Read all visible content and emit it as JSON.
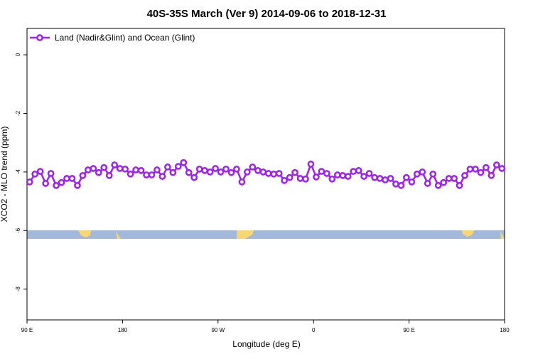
{
  "chart_data": {
    "type": "line",
    "title": "40S-35S March (Ver 9)   2014-09-06 to 2018-12-31",
    "x_label": "Longitude (deg E)",
    "y_label": "XCO2 - MLO trend (ppm)",
    "xlim": [
      90,
      540
    ],
    "xticks": [
      {
        "value": 90,
        "label": "90 E"
      },
      {
        "value": 180,
        "label": "180"
      },
      {
        "value": 270,
        "label": "90 W"
      },
      {
        "value": 360,
        "label": "0"
      },
      {
        "value": 450,
        "label": "90 E"
      },
      {
        "value": 540,
        "label": "180"
      }
    ],
    "ylim": [
      -9.05,
      0.9
    ],
    "yticks": [
      0,
      -2,
      -4,
      -6,
      -8
    ],
    "legend_position": "top-left",
    "x": [
      92.5,
      97.5,
      102.5,
      107.5,
      112.5,
      117.5,
      122.5,
      127.5,
      132.5,
      137.5,
      142.5,
      147.5,
      152.5,
      157.5,
      162.5,
      167.5,
      172.5,
      177.5,
      182.5,
      187.5,
      192.5,
      197.5,
      202.5,
      207.5,
      212.5,
      217.5,
      222.5,
      227.5,
      232.5,
      237.5,
      242.5,
      247.5,
      252.5,
      257.5,
      262.5,
      267.5,
      272.5,
      277.5,
      282.5,
      287.5,
      292.5,
      297.5,
      302.5,
      307.5,
      312.5,
      317.5,
      322.5,
      327.5,
      332.5,
      337.5,
      342.5,
      347.5,
      352.5,
      357.5,
      362.5,
      367.5,
      372.5,
      377.5,
      382.5,
      387.5,
      392.5,
      397.5,
      402.5,
      407.5,
      412.5,
      417.5,
      422.5,
      427.5,
      432.5,
      437.5,
      442.5,
      447.5,
      452.5,
      457.5,
      462.5,
      467.5,
      472.5,
      477.5,
      482.5,
      487.5,
      492.5,
      497.5,
      502.5,
      507.5,
      512.5,
      517.5,
      522.5,
      527.5,
      532.5,
      537.5
    ],
    "series": [
      {
        "name": "Land (Nadir&Glint) and Ocean (Glint)",
        "color": "#a020f0",
        "values": [
          -4.34,
          -4.07,
          -3.98,
          -4.39,
          -4.05,
          -4.46,
          -4.36,
          -4.22,
          -4.22,
          -4.46,
          -4.12,
          -3.93,
          -3.88,
          -4.02,
          -3.85,
          -4.12,
          -3.76,
          -3.88,
          -3.9,
          -4.07,
          -3.93,
          -3.95,
          -4.1,
          -4.1,
          -3.93,
          -4.15,
          -3.83,
          -4.02,
          -3.81,
          -3.68,
          -4.02,
          -4.19,
          -3.9,
          -3.95,
          -4.0,
          -3.88,
          -4.0,
          -3.9,
          -4.02,
          -3.9,
          -4.34,
          -4.0,
          -3.83,
          -3.95,
          -4.0,
          -4.05,
          -4.07,
          -4.05,
          -4.29,
          -4.19,
          -4.02,
          -4.22,
          -4.24,
          -3.73,
          -4.17,
          -3.98,
          -4.05,
          -4.24,
          -4.1,
          -4.12,
          -4.15,
          -3.98,
          -3.95,
          -4.15,
          -4.05,
          -4.19,
          -4.22,
          -4.27,
          -4.22,
          -4.41,
          -4.46,
          -4.19,
          -4.34,
          -4.07,
          -4.0,
          -4.39,
          -4.07,
          -4.46,
          -4.36,
          -4.22,
          -4.22,
          -4.46,
          -4.12,
          -3.9,
          -3.9,
          -4.02,
          -3.85,
          -4.12,
          -3.76,
          -3.88
        ]
      }
    ]
  }
}
